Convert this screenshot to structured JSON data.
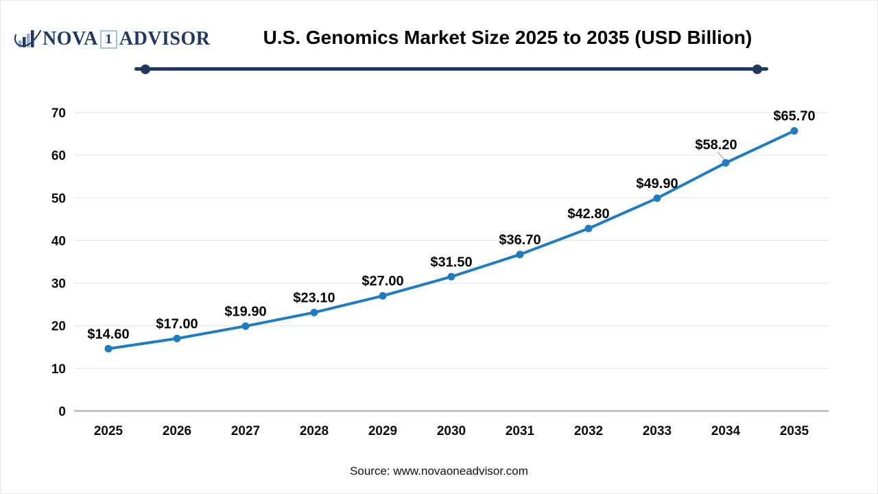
{
  "header": {
    "logo": {
      "nova": "NOVA",
      "one": "1",
      "advisor": "ADVISOR",
      "navy": "#203864",
      "light_blue": "#8FAADC"
    },
    "title": "U.S. Genomics Market Size 2025 to 2035 (USD Billion)"
  },
  "footer": {
    "source": "Source: www.novaoneadvisor.com"
  },
  "chart_data": {
    "type": "line",
    "title": "U.S. Genomics Market Size 2025 to 2035 (USD Billion)",
    "categories": [
      "2025",
      "2026",
      "2027",
      "2028",
      "2029",
      "2030",
      "2031",
      "2032",
      "2033",
      "2034",
      "2035"
    ],
    "values": [
      14.6,
      17.0,
      19.9,
      23.1,
      27.0,
      31.5,
      36.7,
      42.8,
      49.9,
      58.2,
      65.7
    ],
    "point_labels": [
      "$14.60",
      "$17.00",
      "$19.90",
      "$23.10",
      "$27.00",
      "$31.50",
      "$36.70",
      "$42.80",
      "$49.90",
      "$58.20",
      "$65.70"
    ],
    "xlabel": "",
    "ylabel": "",
    "ylim": [
      0,
      70
    ],
    "yticks": [
      0,
      10,
      20,
      30,
      40,
      50,
      60,
      70
    ],
    "grid": true,
    "legend": false,
    "line_color": "#1E7CC2",
    "marker_color": "#1E7CC2",
    "gridline_color": "#E8E8E8",
    "axis_line_color": "#B9B9B9",
    "leader_line_color": "#A6A6A6"
  }
}
